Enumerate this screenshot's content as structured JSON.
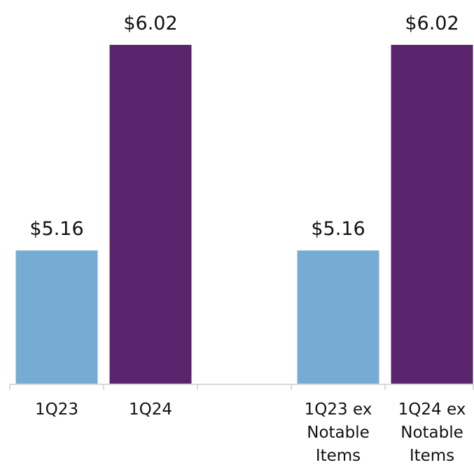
{
  "chart_data": {
    "type": "bar",
    "categories": [
      "1Q23",
      "1Q24",
      null,
      "1Q23 ex Notable Items",
      "1Q24 ex Notable Items"
    ],
    "values": [
      5.16,
      6.02,
      null,
      5.16,
      6.02
    ],
    "value_labels": [
      "$5.16",
      "$6.02",
      null,
      "$5.16",
      "$6.02"
    ],
    "colors": [
      "#76acd3",
      "#5a246c",
      null,
      "#76acd3",
      "#5a246c"
    ],
    "ylim": [
      4.6,
      6.2
    ]
  }
}
